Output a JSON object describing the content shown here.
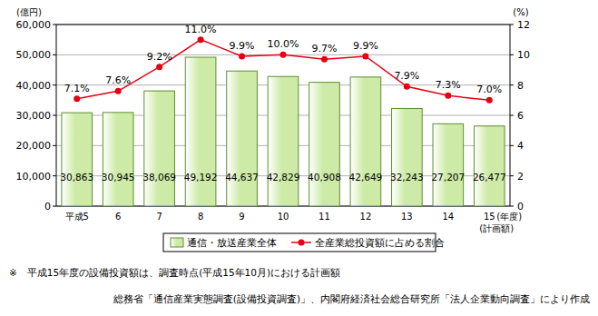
{
  "chart_data": {
    "type": "bar",
    "categories": [
      "平成5",
      "6",
      "7",
      "8",
      "9",
      "10",
      "11",
      "12",
      "13",
      "14",
      "15"
    ],
    "x_label": "(年度)",
    "y_label": "(億円)",
    "y2_label": "(%)",
    "ylim": [
      0,
      60000
    ],
    "yticks": [
      0,
      {
        "value": 10000,
        "label": "10,000"
      },
      {
        "value": 20000,
        "label": "20,000"
      },
      {
        "value": 30000,
        "label": "30,000"
      },
      {
        "value": 40000,
        "label": "40,000"
      },
      {
        "value": 50000,
        "label": "50,000"
      },
      {
        "value": 60000,
        "label": "60,000"
      }
    ],
    "y2lim": [
      0,
      12
    ],
    "y2ticks": [
      0,
      2,
      4,
      6,
      8,
      10,
      12
    ],
    "grid": true,
    "legend": "bottom",
    "data_labels": true,
    "series": [
      {
        "name": "通信・放送産業全体",
        "type": "bar",
        "color": "#cdeaa6",
        "values": [
          30863,
          30945,
          38069,
          49192,
          44637,
          42829,
          40908,
          42649,
          32243,
          27207,
          26477
        ],
        "value_labels": [
          "30,863",
          "30,945",
          "38,069",
          "49,192",
          "44,637",
          "42,829",
          "40,908",
          "42,649",
          "32,243",
          "27,207",
          "26,477"
        ]
      },
      {
        "name": "全産業総投資額に占める割合",
        "type": "line",
        "axis": "y2",
        "color": "#e60012",
        "marker": "circle",
        "values": [
          7.1,
          7.6,
          9.2,
          11.0,
          9.9,
          10.0,
          9.7,
          9.9,
          7.9,
          7.3,
          7.0
        ],
        "value_labels": [
          "7.1%",
          "7.6%",
          "9.2%",
          "11.0%",
          "9.9%",
          "10.0%",
          "9.7%",
          "9.9%",
          "7.9%",
          "7.3%",
          "7.0%"
        ]
      }
    ],
    "annotations": [
      "(計画額)",
      "※　平成15年度の設備投資額は、調査時点(平成15年10月)における計画額",
      "総務省「通信産業実態調査(設備投資調査)」、内閣府経済社会総合研究所「法人企業動向調査」により作成"
    ]
  }
}
